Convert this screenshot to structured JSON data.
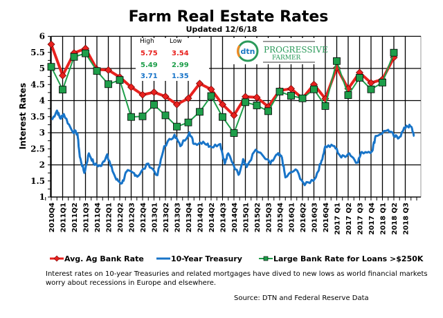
{
  "chart_data": {
    "type": "line",
    "title": "Farm Real Estate Rates",
    "subtitle": "Updated 12/6/18",
    "ylabel": "Interest Rates",
    "xlabel": "",
    "ylim": [
      1,
      6
    ],
    "yticks": [
      "1",
      "1.5",
      "2",
      "2.5",
      "3",
      "3.5",
      "4",
      "4.5",
      "5",
      "5.5",
      "6"
    ],
    "grid": true,
    "legend_position": "bottom",
    "categories": [
      "2010Q4",
      "2011Q1",
      "2011Q2",
      "2011Q3",
      "2011Q4",
      "2012Q1",
      "2012Q2",
      "2012Q3",
      "2012Q4",
      "2013Q1",
      "2013Q2",
      "2013Q3",
      "2013Q4",
      "2014Q1",
      "2014Q2",
      "2014Q3",
      "2014Q4",
      "2015Q1",
      "2015Q2",
      "2015Q3",
      "2015Q4",
      "2016Q1",
      "2016Q2",
      "2016Q3",
      "2016Q4",
      "2017 Q1",
      "2017 Q2",
      "2017 Q3",
      "2017 Q4",
      "2018 Q1",
      "2018 Q2",
      "2018 Q3"
    ],
    "series": [
      {
        "name": "Avg. Ag Bank Rate",
        "color": "#e8211e",
        "marker": "diamond",
        "values": [
          5.75,
          4.78,
          5.48,
          5.62,
          4.97,
          4.95,
          4.73,
          4.42,
          4.18,
          4.26,
          4.13,
          3.88,
          4.07,
          4.53,
          4.35,
          3.88,
          3.54,
          4.12,
          4.1,
          3.81,
          4.31,
          4.37,
          4.07,
          4.5,
          4.06,
          5.02,
          4.37,
          4.87,
          4.55,
          4.66,
          5.34,
          null
        ]
      },
      {
        "name": "10-Year Treasury",
        "color": "#1874c8",
        "marker": "none",
        "x": [
          0.06,
          0.5,
          0.8,
          1.1,
          1.8,
          2.3,
          2.5,
          2.9,
          3.3,
          3.8,
          4.4,
          4.9,
          5.2,
          5.7,
          6.2,
          6.6,
          7.2,
          7.6,
          8.5,
          9.3,
          9.9,
          10.8,
          11.3,
          12.1,
          12.5,
          13.3,
          13.9,
          14.8,
          15.2,
          15.5,
          16.4,
          16.8,
          17.1,
          17.9,
          19.2,
          19.8,
          20.2,
          20.5,
          21.4,
          22.2,
          23.1,
          23.6,
          24.0,
          24.8,
          25.4,
          26.1,
          26.8,
          27.2,
          28.1,
          28.4,
          29.5,
          30.1,
          30.5,
          31.1,
          31.5,
          31.8
        ],
        "values": [
          3.4,
          3.69,
          3.44,
          3.58,
          3.08,
          2.97,
          2.25,
          1.75,
          2.36,
          2.0,
          1.97,
          2.33,
          1.97,
          1.54,
          1.43,
          1.79,
          1.75,
          1.65,
          2.04,
          1.68,
          2.58,
          2.94,
          2.58,
          3.01,
          2.65,
          2.72,
          2.58,
          2.65,
          2.04,
          2.36,
          1.69,
          2.18,
          1.93,
          2.47,
          2.04,
          2.33,
          2.23,
          1.61,
          1.86,
          1.37,
          1.58,
          2.04,
          2.58,
          2.58,
          2.23,
          2.36,
          2.07,
          2.4,
          2.43,
          2.9,
          3.09,
          2.87,
          2.87,
          3.22,
          3.19,
          2.9
        ]
      },
      {
        "name": "Large Bank Rate for Loans >$250K",
        "color": "#1e9e4a",
        "marker": "square",
        "values": [
          5.05,
          4.34,
          5.36,
          5.47,
          4.92,
          4.51,
          4.64,
          3.49,
          3.51,
          3.87,
          3.54,
          3.19,
          3.32,
          3.65,
          4.14,
          3.49,
          2.99,
          3.95,
          3.85,
          3.67,
          4.28,
          4.15,
          4.07,
          4.35,
          3.83,
          5.23,
          4.17,
          4.71,
          4.35,
          4.56,
          5.49,
          null
        ]
      }
    ],
    "high_low_table": {
      "headers": [
        "High",
        "Low"
      ],
      "rows": [
        {
          "high": "5.75",
          "low": "3.54",
          "color": "#e8211e"
        },
        {
          "high": "5.49",
          "low": "2.99",
          "color": "#1e9e4a"
        },
        {
          "high": "3.71",
          "low": "1.35",
          "color": "#1874c8"
        }
      ]
    },
    "logo": {
      "brand1": "dtn",
      "brand2_line1": "PROGRESSIVE",
      "brand2_line2": "FARMER"
    }
  },
  "note": "Interest rates on 10-year Treasuries and related mortgages have dived to new lows as world financial markets worry about recessions in Europe and elsewhere.",
  "source": "Source: DTN  and Federal Reserve Data"
}
